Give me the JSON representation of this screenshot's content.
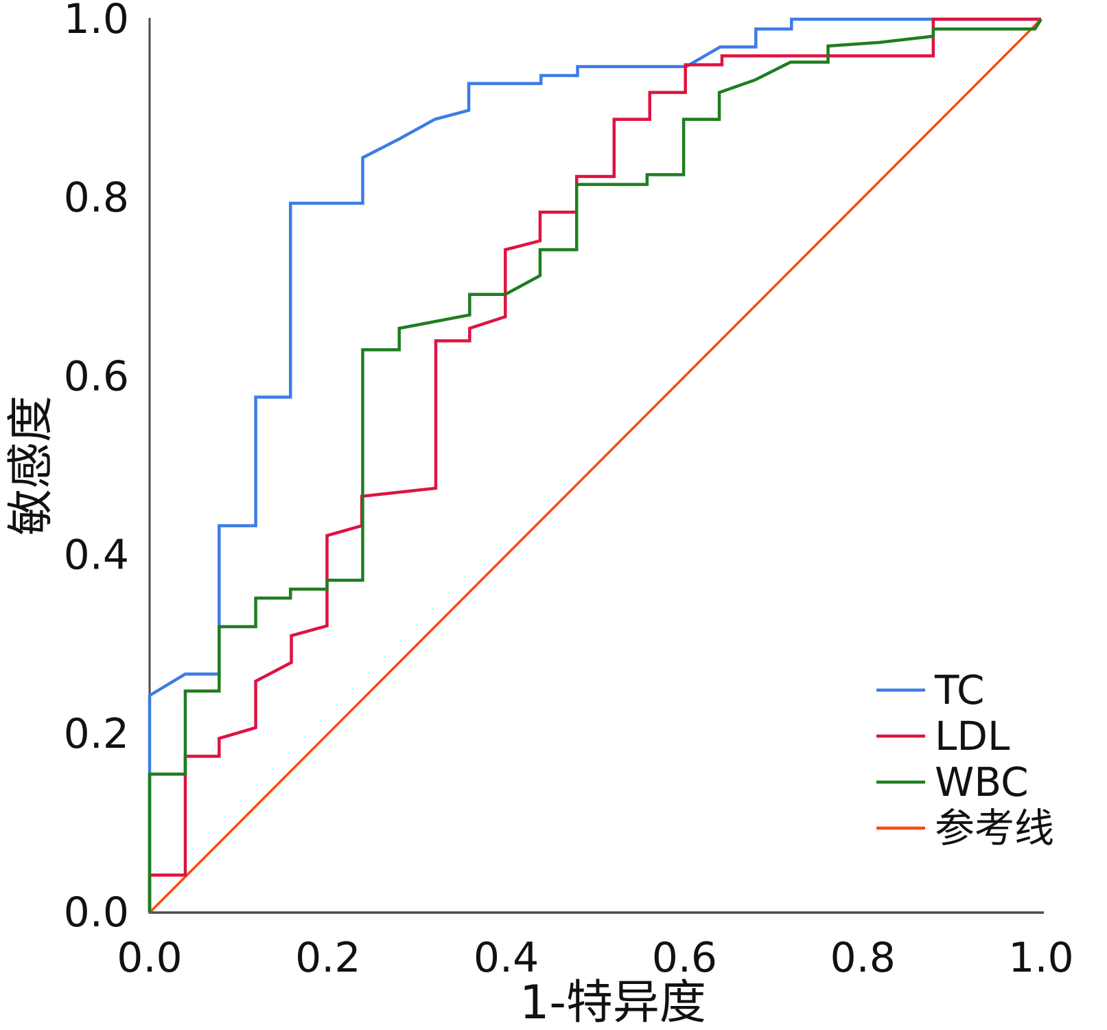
{
  "chart_data": {
    "type": "line",
    "subtype": "roc-step-curves",
    "title": "",
    "xlabel": "1-特异度",
    "ylabel": "敏感度",
    "xlim": [
      0,
      1
    ],
    "ylim": [
      0,
      1
    ],
    "grid": false,
    "legend_position": "lower-right",
    "x_tick_labels": [
      "0.0",
      "0.2",
      "0.4",
      "0.6",
      "0.8",
      "1.0"
    ],
    "y_tick_labels": [
      "0.0",
      "0.2",
      "0.4",
      "0.6",
      "0.8",
      "1.0"
    ],
    "x_tick_values": [
      0.0,
      0.2,
      0.4,
      0.6,
      0.8,
      1.0
    ],
    "y_tick_values": [
      0.0,
      0.2,
      0.4,
      0.6,
      0.8,
      1.0
    ],
    "series": [
      {
        "name": "TC",
        "color": "#3d7ce5",
        "is_reference": false,
        "points": [
          [
            0,
            0
          ],
          [
            0,
            0.243
          ],
          [
            0.04,
            0.267
          ],
          [
            0.078,
            0.267
          ],
          [
            0.078,
            0.433
          ],
          [
            0.119,
            0.433
          ],
          [
            0.119,
            0.577
          ],
          [
            0.158,
            0.577
          ],
          [
            0.158,
            0.794
          ],
          [
            0.239,
            0.794
          ],
          [
            0.239,
            0.845
          ],
          [
            0.28,
            0.866
          ],
          [
            0.32,
            0.888
          ],
          [
            0.358,
            0.898
          ],
          [
            0.358,
            0.928
          ],
          [
            0.439,
            0.928
          ],
          [
            0.439,
            0.937
          ],
          [
            0.48,
            0.937
          ],
          [
            0.48,
            0.947
          ],
          [
            0.602,
            0.947
          ],
          [
            0.64,
            0.969
          ],
          [
            0.68,
            0.969
          ],
          [
            0.68,
            0.989
          ],
          [
            0.72,
            0.989
          ],
          [
            0.72,
            1.0
          ],
          [
            1.0,
            1.0
          ]
        ]
      },
      {
        "name": "LDL",
        "color": "#dd1440",
        "is_reference": false,
        "points": [
          [
            0,
            0
          ],
          [
            0,
            0.042
          ],
          [
            0.04,
            0.042
          ],
          [
            0.04,
            0.175
          ],
          [
            0.078,
            0.175
          ],
          [
            0.078,
            0.195
          ],
          [
            0.119,
            0.207
          ],
          [
            0.119,
            0.259
          ],
          [
            0.159,
            0.28
          ],
          [
            0.159,
            0.31
          ],
          [
            0.199,
            0.321
          ],
          [
            0.199,
            0.422
          ],
          [
            0.238,
            0.433
          ],
          [
            0.238,
            0.466
          ],
          [
            0.321,
            0.475
          ],
          [
            0.321,
            0.64
          ],
          [
            0.359,
            0.64
          ],
          [
            0.359,
            0.654
          ],
          [
            0.399,
            0.667
          ],
          [
            0.399,
            0.742
          ],
          [
            0.438,
            0.752
          ],
          [
            0.438,
            0.784
          ],
          [
            0.479,
            0.784
          ],
          [
            0.479,
            0.824
          ],
          [
            0.521,
            0.824
          ],
          [
            0.521,
            0.888
          ],
          [
            0.561,
            0.888
          ],
          [
            0.561,
            0.918
          ],
          [
            0.601,
            0.918
          ],
          [
            0.601,
            0.949
          ],
          [
            0.642,
            0.949
          ],
          [
            0.642,
            0.959
          ],
          [
            0.879,
            0.959
          ],
          [
            0.879,
            1.0
          ],
          [
            1.0,
            1.0
          ]
        ]
      },
      {
        "name": "WBC",
        "color": "#1f7d1f",
        "is_reference": false,
        "points": [
          [
            0,
            0
          ],
          [
            0,
            0.155
          ],
          [
            0.04,
            0.155
          ],
          [
            0.04,
            0.248
          ],
          [
            0.078,
            0.248
          ],
          [
            0.078,
            0.32
          ],
          [
            0.119,
            0.32
          ],
          [
            0.119,
            0.352
          ],
          [
            0.158,
            0.352
          ],
          [
            0.158,
            0.362
          ],
          [
            0.199,
            0.362
          ],
          [
            0.199,
            0.372
          ],
          [
            0.239,
            0.372
          ],
          [
            0.239,
            0.63
          ],
          [
            0.28,
            0.63
          ],
          [
            0.28,
            0.654
          ],
          [
            0.359,
            0.669
          ],
          [
            0.359,
            0.692
          ],
          [
            0.399,
            0.692
          ],
          [
            0.438,
            0.713
          ],
          [
            0.438,
            0.742
          ],
          [
            0.479,
            0.742
          ],
          [
            0.479,
            0.815
          ],
          [
            0.558,
            0.815
          ],
          [
            0.558,
            0.826
          ],
          [
            0.599,
            0.826
          ],
          [
            0.599,
            0.888
          ],
          [
            0.639,
            0.888
          ],
          [
            0.639,
            0.918
          ],
          [
            0.679,
            0.932
          ],
          [
            0.719,
            0.952
          ],
          [
            0.761,
            0.952
          ],
          [
            0.761,
            0.97
          ],
          [
            0.818,
            0.974
          ],
          [
            0.879,
            0.981
          ],
          [
            0.879,
            0.989
          ],
          [
            0.993,
            0.989
          ],
          [
            1.0,
            1.0
          ]
        ]
      },
      {
        "name": "参考线",
        "color": "#fb4a0d",
        "is_reference": true,
        "points": [
          [
            0,
            0
          ],
          [
            1,
            1
          ]
        ]
      }
    ]
  }
}
